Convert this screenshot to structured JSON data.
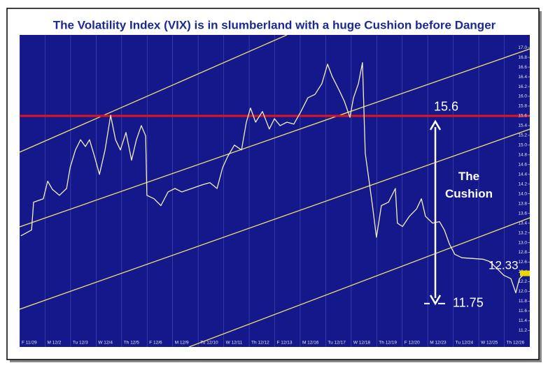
{
  "chart_data": {
    "type": "line",
    "title": "The Volatility Index (VIX) is in slumberland with a huge Cushion before Danger",
    "categories": [
      "F 11/29",
      "M 12/2",
      "Tu 12/3",
      "W 12/4",
      "Th 12/5",
      "F 12/6",
      "M 12/9",
      "Tu 12/10",
      "W 12/11",
      "Th 12/12",
      "F 12/13",
      "M 12/16",
      "Tu 12/17",
      "W 12/18",
      "Th 12/19",
      "F 12/20",
      "M 12/23",
      "Tu 12/24",
      "W 12/25",
      "Th 12/26"
    ],
    "xlim": [
      0,
      20
    ],
    "ylim": [
      10.86,
      17.26
    ],
    "yticks": [
      11.2,
      11.4,
      11.6,
      11.8,
      {
        "value": 12,
        "label": "12.0"
      },
      12.2,
      12.4,
      12.6,
      12.8,
      {
        "value": 13,
        "label": "13.0"
      },
      13.2,
      13.4,
      13.6,
      13.8,
      {
        "value": 14,
        "label": "14.0"
      },
      14.2,
      14.4,
      14.6,
      14.8,
      {
        "value": 15,
        "label": "15.0"
      },
      15.2,
      15.4,
      15.6,
      15.8,
      {
        "value": 16,
        "label": "16.0"
      },
      16.2,
      16.4,
      16.6,
      16.8,
      {
        "value": 17,
        "label": "17.0"
      }
    ],
    "grid": "x",
    "series": [
      {
        "name": "VIX",
        "color": "#f2f0c8",
        "x": [
          0.05,
          0.47,
          0.55,
          0.93,
          1.1,
          1.29,
          1.56,
          1.84,
          1.98,
          2.19,
          2.39,
          2.58,
          2.74,
          2.94,
          3.13,
          3.35,
          3.57,
          3.76,
          3.95,
          4.17,
          4.39,
          4.58,
          4.77,
          4.94,
          4.99,
          5.27,
          5.54,
          5.82,
          6.09,
          6.36,
          6.64,
          6.91,
          7.19,
          7.46,
          7.74,
          7.96,
          8.15,
          8.42,
          8.7,
          8.89,
          9.05,
          9.25,
          9.52,
          9.79,
          9.99,
          10.21,
          10.48,
          10.75,
          11.03,
          11.3,
          11.58,
          11.85,
          12.07,
          12.26,
          12.54,
          12.73,
          12.95,
          13.09,
          13.28,
          13.44,
          13.55,
          13.72,
          13.85,
          13.99,
          14.18,
          14.46,
          14.73,
          14.81,
          15.01,
          15.28,
          15.56,
          15.75,
          15.91,
          16.19,
          16.46,
          16.65,
          16.85,
          17.06,
          17.34,
          18.16,
          18.44,
          18.71,
          18.98,
          19.26,
          19.45,
          19.59,
          19.81
        ],
        "values": [
          13.14,
          13.26,
          13.83,
          13.9,
          14.26,
          14.09,
          13.97,
          14.11,
          14.54,
          14.9,
          15.11,
          14.97,
          15.11,
          14.76,
          14.4,
          14.9,
          15.61,
          15.11,
          14.9,
          15.26,
          14.69,
          15.11,
          15.4,
          15.19,
          13.97,
          13.9,
          13.76,
          14.04,
          14.11,
          14.04,
          14.09,
          14.14,
          14.19,
          14.23,
          14.11,
          14.54,
          14.76,
          15.0,
          14.9,
          15.47,
          15.76,
          15.47,
          15.69,
          15.33,
          15.54,
          15.4,
          15.47,
          15.43,
          15.69,
          15.97,
          16.04,
          16.26,
          16.66,
          16.4,
          16.11,
          15.9,
          15.57,
          15.97,
          16.26,
          16.69,
          14.83,
          14.19,
          13.69,
          13.11,
          13.76,
          13.83,
          14.11,
          13.4,
          13.33,
          13.54,
          13.69,
          13.9,
          13.54,
          13.4,
          13.43,
          13.26,
          12.97,
          12.76,
          12.69,
          12.66,
          12.61,
          12.47,
          12.33,
          12.26,
          11.97,
          12.26,
          12.37
        ]
      }
    ],
    "red_line": 15.6,
    "cushion_label": "The Cushion",
    "last_value": 12.33,
    "low_mark": 11.75
  }
}
